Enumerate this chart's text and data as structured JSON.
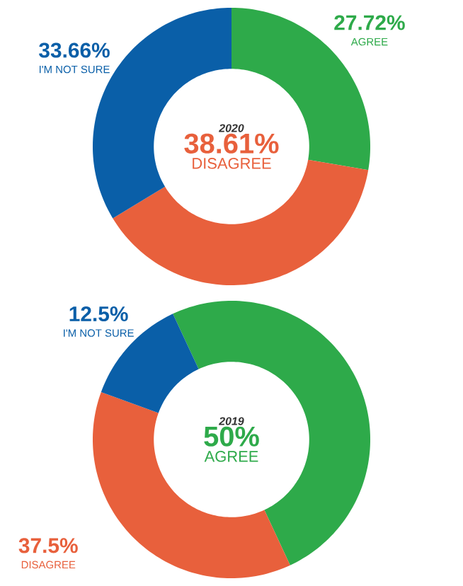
{
  "chart_data": [
    {
      "type": "donut",
      "title": "2020",
      "categories": [
        "AGREE",
        "DISAGREE",
        "I'M NOT SURE"
      ],
      "values": [
        27.72,
        38.61,
        33.66
      ],
      "colors": [
        "#2eaa4a",
        "#e8603c",
        "#0a5fa8"
      ],
      "value_labels": [
        "27.72%",
        "38.61%",
        "33.66%"
      ]
    },
    {
      "type": "donut",
      "title": "2019",
      "categories": [
        "AGREE",
        "DISAGREE",
        "I'M NOT SURE"
      ],
      "values": [
        50,
        37.5,
        12.5
      ],
      "colors": [
        "#2eaa4a",
        "#e8603c",
        "#0a5fa8"
      ],
      "value_labels": [
        "50%",
        "37.5%",
        "12.5%"
      ]
    }
  ]
}
